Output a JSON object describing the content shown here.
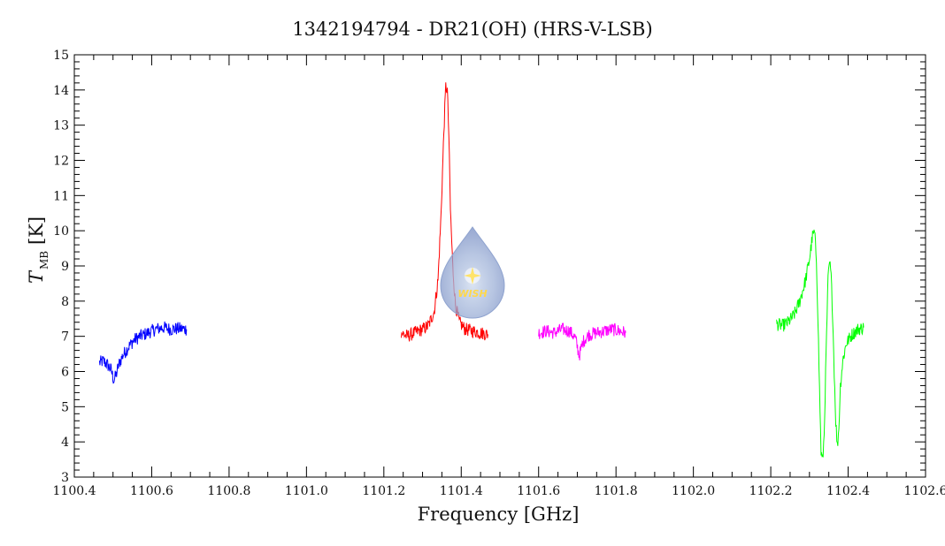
{
  "chart_data": {
    "type": "line",
    "title": "1342194794 - DR21(OH) (HRS-V-LSB)",
    "xlabel": "Frequency [GHz]",
    "ylabel_main": "T",
    "ylabel_sub": "MB",
    "ylabel_unit": "[K]",
    "xlim": [
      1100.4,
      1102.6
    ],
    "ylim": [
      3,
      15
    ],
    "x_ticks": [
      "1100.4",
      "1100.6",
      "1100.8",
      "1101.0",
      "1101.2",
      "1101.4",
      "1101.6",
      "1101.8",
      "1102.0",
      "1102.2",
      "1102.4",
      "1102.6"
    ],
    "y_ticks": [
      "3",
      "4",
      "5",
      "6",
      "7",
      "8",
      "9",
      "10",
      "11",
      "12",
      "13",
      "14",
      "15"
    ],
    "grid": false,
    "legend": false,
    "series": [
      {
        "color": "#0000ff",
        "x": [
          1100.465,
          1100.475,
          1100.485,
          1100.495,
          1100.502,
          1100.508,
          1100.515,
          1100.525,
          1100.54,
          1100.555,
          1100.57,
          1100.59,
          1100.61,
          1100.63,
          1100.65,
          1100.67,
          1100.69
        ],
        "y": [
          6.25,
          6.3,
          6.2,
          6.05,
          5.75,
          5.9,
          6.2,
          6.45,
          6.7,
          6.9,
          7.0,
          7.1,
          7.2,
          7.25,
          7.2,
          7.22,
          7.2
        ]
      },
      {
        "color": "#ff0000",
        "x": [
          1101.245,
          1101.26,
          1101.28,
          1101.3,
          1101.315,
          1101.33,
          1101.34,
          1101.348,
          1101.355,
          1101.36,
          1101.364,
          1101.368,
          1101.372,
          1101.378,
          1101.385,
          1101.395,
          1101.41,
          1101.43,
          1101.45,
          1101.47
        ],
        "y": [
          7.1,
          7.0,
          7.1,
          7.2,
          7.3,
          7.7,
          8.6,
          10.5,
          12.8,
          14.1,
          14.0,
          12.7,
          10.6,
          9.0,
          7.9,
          7.4,
          7.2,
          7.15,
          7.1,
          7.05
        ]
      },
      {
        "color": "#ff00ff",
        "x": [
          1101.6,
          1101.62,
          1101.64,
          1101.66,
          1101.68,
          1101.695,
          1101.705,
          1101.715,
          1101.73,
          1101.75,
          1101.77,
          1101.79,
          1101.81,
          1101.825
        ],
        "y": [
          7.1,
          7.15,
          7.1,
          7.2,
          7.15,
          6.95,
          6.45,
          6.85,
          7.05,
          7.1,
          7.15,
          7.2,
          7.15,
          7.1
        ]
      },
      {
        "color": "#00ff00",
        "x": [
          1102.215,
          1102.23,
          1102.245,
          1102.26,
          1102.275,
          1102.29,
          1102.3,
          1102.308,
          1102.313,
          1102.318,
          1102.322,
          1102.326,
          1102.33,
          1102.334,
          1102.338,
          1102.343,
          1102.348,
          1102.352,
          1102.356,
          1102.36,
          1102.364,
          1102.368,
          1102.372,
          1102.376,
          1102.38,
          1102.386,
          1102.395,
          1102.41,
          1102.425,
          1102.44
        ],
        "y": [
          7.35,
          7.3,
          7.4,
          7.6,
          8.0,
          8.6,
          9.2,
          9.85,
          9.95,
          9.2,
          7.5,
          5.5,
          3.7,
          3.45,
          4.2,
          6.5,
          8.6,
          9.1,
          8.7,
          7.6,
          6.0,
          4.6,
          3.85,
          4.4,
          5.6,
          6.3,
          6.8,
          7.05,
          7.2,
          7.25
        ]
      }
    ],
    "logo_label": "WISH"
  }
}
